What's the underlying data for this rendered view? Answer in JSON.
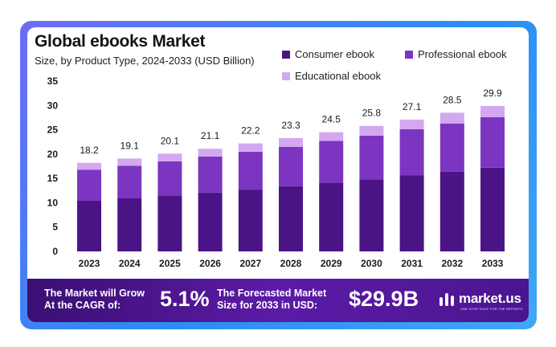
{
  "header": {
    "title": "Global ebooks Market",
    "subtitle": "Size, by Product Type, 2024-2033 (USD Billion)"
  },
  "legend": [
    {
      "label": "Consumer ebook",
      "color": "#4a1486"
    },
    {
      "label": "Professional ebook",
      "color": "#7b35c0"
    },
    {
      "label": "Educational ebook",
      "color": "#d3a8f0"
    }
  ],
  "chart_data": {
    "type": "bar",
    "stacked": true,
    "title": "Global ebooks Market",
    "subtitle": "Size, by Product Type, 2024-2033 (USD Billion)",
    "categories": [
      "2023",
      "2024",
      "2025",
      "2026",
      "2027",
      "2028",
      "2029",
      "2030",
      "2031",
      "2032",
      "2033"
    ],
    "totals": [
      18.2,
      19.1,
      20.1,
      21.1,
      22.2,
      23.3,
      24.5,
      25.8,
      27.1,
      28.5,
      29.9
    ],
    "total_labels": [
      "18.2",
      "19.1",
      "20.1",
      "21.1",
      "22.2",
      "23.3",
      "24.5",
      "25.8",
      "27.1",
      "28.5",
      "29.9"
    ],
    "series": [
      {
        "name": "Consumer ebook",
        "color": "#4a1486",
        "values": [
          10.4,
          10.9,
          11.5,
          12.1,
          12.7,
          13.4,
          14.1,
          14.8,
          15.6,
          16.4,
          17.2
        ]
      },
      {
        "name": "Professional ebook",
        "color": "#7b35c0",
        "values": [
          6.4,
          6.7,
          7.0,
          7.4,
          7.8,
          8.1,
          8.6,
          9.0,
          9.5,
          9.9,
          10.4
        ]
      },
      {
        "name": "Educational ebook",
        "color": "#d3a8f0",
        "values": [
          1.4,
          1.5,
          1.6,
          1.6,
          1.7,
          1.8,
          1.8,
          2.0,
          2.0,
          2.2,
          2.3
        ]
      }
    ],
    "ylim": [
      0,
      35
    ],
    "yticks": [
      "0",
      "5",
      "10",
      "15",
      "20",
      "25",
      "30",
      "35"
    ],
    "grid": false,
    "legend_position": "top-right"
  },
  "footer": {
    "cagr_text_line1": "The Market will Grow",
    "cagr_text_line2": "At the CAGR of:",
    "cagr_value": "5.1%",
    "forecast_text_line1": "The Forecasted Market",
    "forecast_text_line2": "Size for 2033 in USD:",
    "forecast_value": "$29.9B",
    "brand": "market.us",
    "brand_tagline": "ONE STOP SHOP FOR THE REPORTS"
  }
}
